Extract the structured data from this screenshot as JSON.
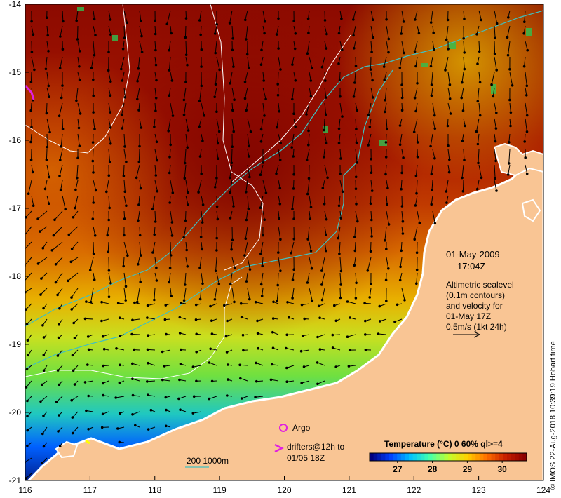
{
  "map": {
    "date_label": "01-May-2009",
    "time_label": "17:04Z",
    "altimetry_lines": [
      "Altimetric sealevel",
      "(0.1m contours)",
      "and velocity for",
      "01-May 17Z",
      "0.5m/s (1kt 24h)"
    ],
    "argo_label": "Argo",
    "drifters_lines": [
      "drifters@12h to",
      "01/05 18Z"
    ],
    "depth_label": "200  1000m",
    "credit": "© IMOS 22-Aug-2018 10:39:19 Hobart time",
    "lon_ticks": [
      "116",
      "117",
      "118",
      "119",
      "120",
      "121",
      "122",
      "123",
      "124"
    ],
    "lat_ticks": [
      "-14",
      "-15",
      "-16",
      "-17",
      "-18",
      "-19",
      "-20",
      "-21"
    ],
    "lon_range": [
      116,
      124
    ],
    "lat_range": [
      -21,
      -14
    ],
    "colors": {
      "land": "#f9c594",
      "argo": "#e020e0",
      "contour": "#ffffff",
      "isobath_200": "#40c0c0"
    }
  },
  "colorbar": {
    "title": "Temperature (°C) 0 60% ql>=4",
    "ticks": [
      "27",
      "28",
      "29",
      "30"
    ],
    "range": [
      26.2,
      30.7
    ],
    "colors": [
      "#00007f",
      "#0040ff",
      "#00c0ff",
      "#40ffb0",
      "#c0ff30",
      "#ffd000",
      "#ff7000",
      "#c81e00",
      "#8c0000"
    ]
  }
}
